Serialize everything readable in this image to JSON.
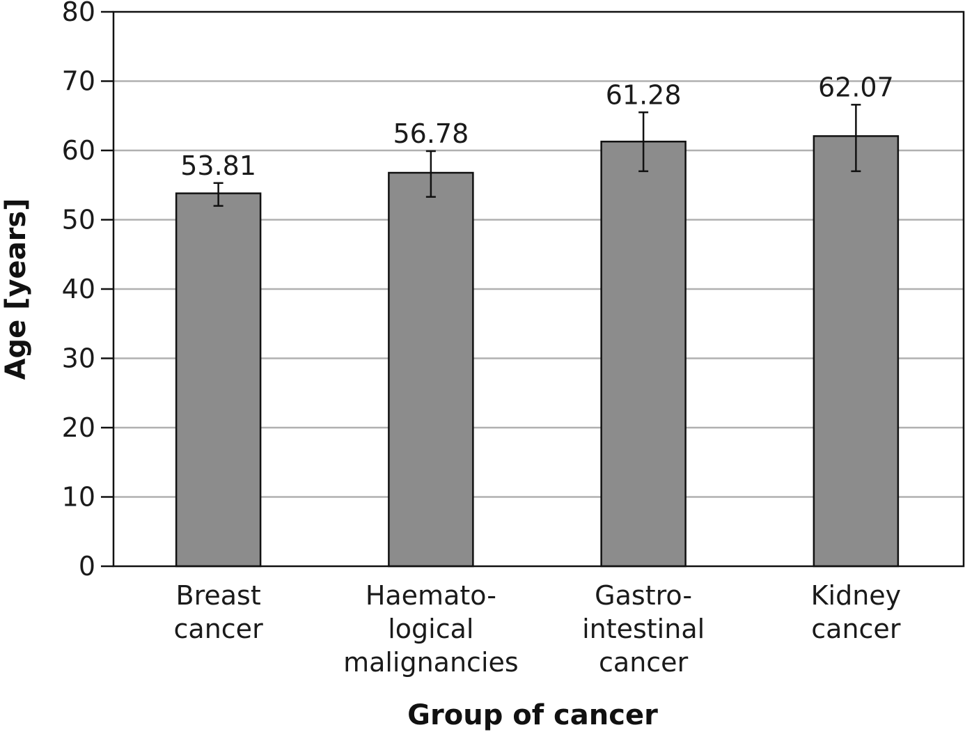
{
  "chart_data": {
    "type": "bar",
    "title": "",
    "xlabel": "Group of cancer",
    "ylabel": "Age [years]",
    "ylim": [
      0,
      80
    ],
    "yticks": [
      "0",
      "10",
      "20",
      "30",
      "40",
      "50",
      "60",
      "70",
      "80"
    ],
    "grid": true,
    "categories": [
      [
        "Breast",
        "cancer"
      ],
      [
        "Haemato-",
        "logical",
        "malignancies"
      ],
      [
        "Gastro-",
        "intestinal",
        "cancer"
      ],
      [
        "Kidney",
        "cancer"
      ]
    ],
    "values": [
      53.81,
      56.78,
      61.28,
      62.07
    ],
    "value_labels": [
      "53.81",
      "56.78",
      "61.28",
      "62.07"
    ],
    "error_bars": [
      {
        "low": 52.0,
        "high": 55.3
      },
      {
        "low": 53.3,
        "high": 59.9
      },
      {
        "low": 57.0,
        "high": 65.5
      },
      {
        "low": 57.0,
        "high": 66.6
      }
    ],
    "colors": {
      "bar_fill": "#8c8c8c",
      "bar_stroke": "#111111",
      "grid": "#b0b0b0",
      "axis": "#111111"
    }
  }
}
